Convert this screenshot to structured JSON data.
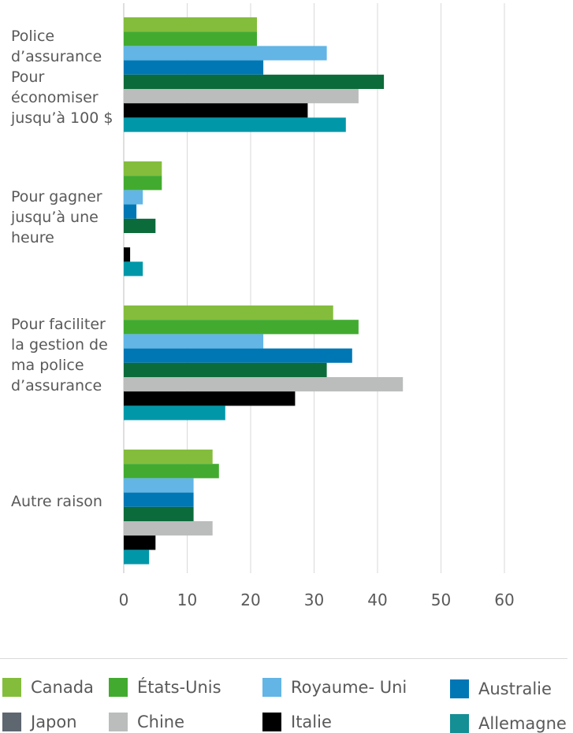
{
  "chart_data": {
    "type": "bar",
    "orientation": "horizontal",
    "categories": [
      "Police d’assurance Pour économiser jusqu’à 100 $",
      "Pour gagner jusqu’à une heure",
      "Pour faciliter la gestion de ma police d’assurance",
      "Autre raison"
    ],
    "category_lines": [
      [
        "Police",
        "d’assurance",
        "Pour",
        "économiser",
        "jusqu’à 100 $"
      ],
      [
        "Pour gagner",
        "jusqu’à une",
        "heure"
      ],
      [
        "Pour faciliter",
        "la gestion de",
        "ma police",
        "d’assurance"
      ],
      [
        "Autre raison"
      ]
    ],
    "series": [
      {
        "name": "Canada",
        "color": "#84bd3c",
        "values": [
          21,
          6,
          33,
          14
        ]
      },
      {
        "name": "États-Unis",
        "color": "#42ab2f",
        "values": [
          21,
          6,
          37,
          15
        ]
      },
      {
        "name": "Royaume- Uni",
        "color": "#62b5e5",
        "values": [
          32,
          3,
          22,
          11
        ]
      },
      {
        "name": "Australie",
        "color": "#0077b5",
        "values": [
          22,
          2,
          36,
          11
        ]
      },
      {
        "name": "Japon",
        "color": "#0c6b3a",
        "values": [
          41,
          5,
          32,
          11
        ]
      },
      {
        "name": "Chine",
        "color": "#bbbcbc",
        "values": [
          37,
          0,
          44,
          14
        ]
      },
      {
        "name": "Italie",
        "color": "#000000",
        "values": [
          29,
          1,
          27,
          5
        ]
      },
      {
        "name": "Allemagne",
        "color": "#0097a9",
        "values": [
          35,
          3,
          16,
          4
        ]
      }
    ],
    "xlim": [
      0,
      60
    ],
    "xticks": [
      0,
      10,
      20,
      30,
      40,
      50,
      60
    ],
    "grid": true,
    "legend_position": "bottom",
    "legend": [
      {
        "label": "Canada",
        "color": "#84bd3c"
      },
      {
        "label": "États-Unis",
        "color": "#42ab2f"
      },
      {
        "label": "Royaume- Uni",
        "color": "#62b5e5"
      },
      {
        "label": "Australie",
        "color": "#0077b5"
      },
      {
        "label": "Japon",
        "color": "#5e6670"
      },
      {
        "label": "Chine",
        "color": "#bbbcbc"
      },
      {
        "label": "Italie",
        "color": "#000000"
      },
      {
        "label": "Allemagne",
        "color": "#148f94"
      }
    ]
  }
}
